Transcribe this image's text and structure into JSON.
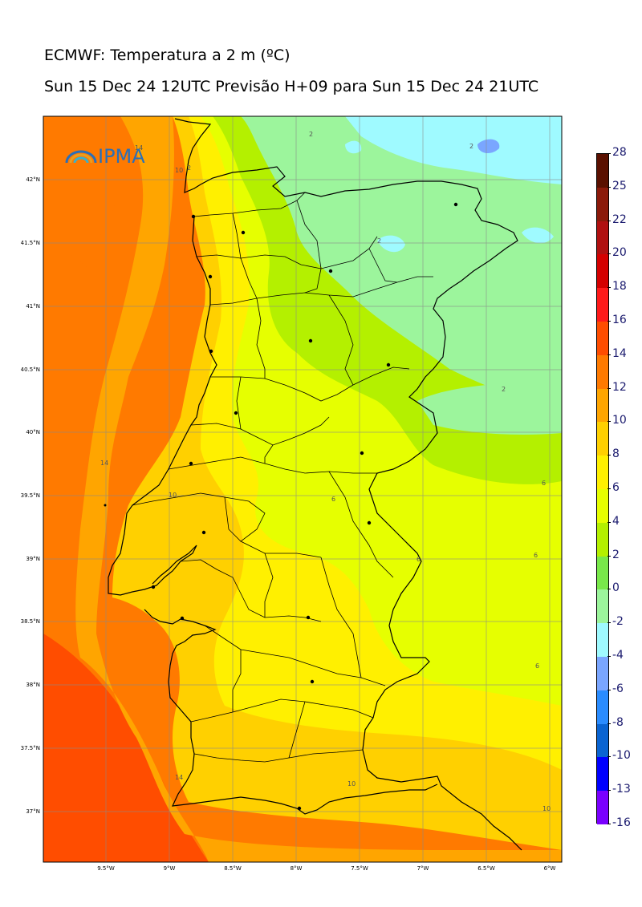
{
  "header": {
    "title": "ECMWF: Temperatura a 2 m (ºC)",
    "subtitle": "Sun 15 Dec 24 12UTC Previsão H+09 para Sun 15 Dec 24 21UTC"
  },
  "logo": {
    "text": "IPMA",
    "icon": "rainbow-arc-icon"
  },
  "axes": {
    "lat_labels": [
      "42°N",
      "41.5°N",
      "41°N",
      "40.5°N",
      "40°N",
      "39.5°N",
      "39°N",
      "38.5°N",
      "38°N",
      "37.5°N",
      "37°N"
    ],
    "lon_labels": [
      "9.5°W",
      "9°W",
      "8.5°W",
      "8°W",
      "7.5°W",
      "7°W",
      "6.5°W",
      "6°W"
    ],
    "grid": true
  },
  "colorbar": {
    "labels": [
      "28",
      "25",
      "22",
      "20",
      "18",
      "16",
      "14",
      "12",
      "10",
      "8",
      "6",
      "4",
      "2",
      "0",
      "-2",
      "-4",
      "-6",
      "-8",
      "-10",
      "-13",
      "-16"
    ],
    "colors": [
      "#5a1000",
      "#8b1a0a",
      "#b01010",
      "#d40000",
      "#ff1a1a",
      "#ff4d00",
      "#ff7a00",
      "#ffa500",
      "#ffd000",
      "#fff000",
      "#e6ff00",
      "#b4f000",
      "#78e84a",
      "#9cf59c",
      "#9ffaff",
      "#7aa6ff",
      "#2a8cff",
      "#0a64d2",
      "#0000ff",
      "#7a00ff",
      "#e000ff"
    ]
  },
  "contour_labels": [
    "2",
    "2",
    "2",
    "2",
    "2",
    "6",
    "6",
    "6",
    "6",
    "6",
    "10",
    "10",
    "10",
    "14",
    "14",
    "14",
    "10"
  ],
  "cities": 19
}
